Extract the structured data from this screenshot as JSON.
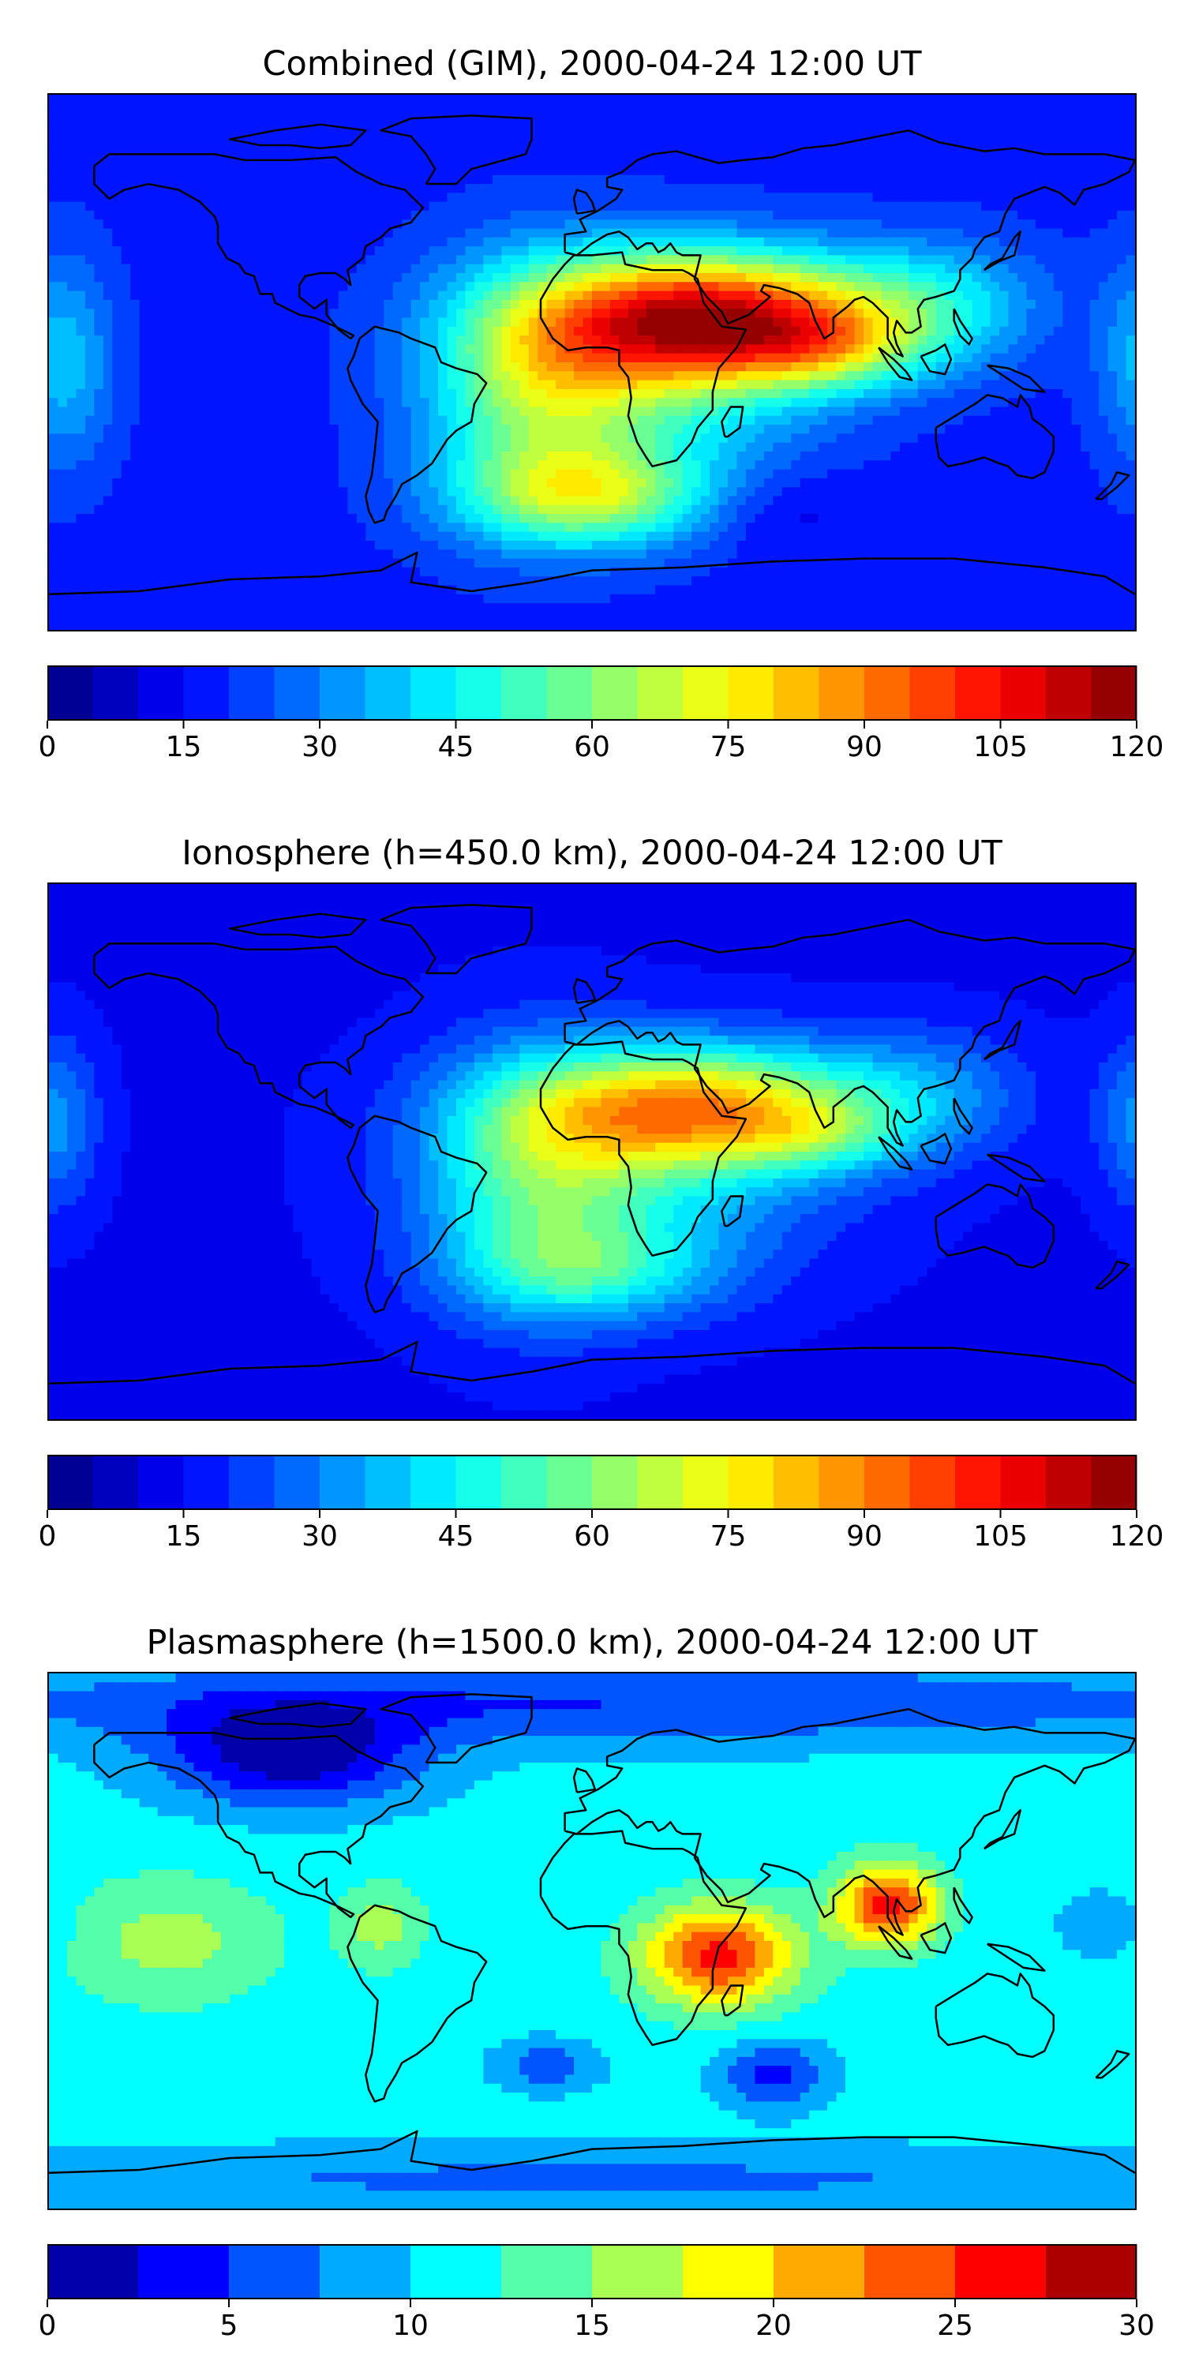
{
  "panels": [
    {
      "title": "Combined (GIM), 2000-04-24 12:00 UT",
      "colorbar": {
        "vmin": 0,
        "vmax": 120,
        "levels": 24,
        "ticks": [
          "0",
          "15",
          "30",
          "45",
          "60",
          "75",
          "90",
          "105",
          "120"
        ]
      },
      "field": {
        "base": 18,
        "blobs": [
          {
            "lon": 40,
            "lat": 15,
            "sx": 40,
            "sy": 15,
            "amp": 80
          },
          {
            "lon": 78,
            "lat": 5,
            "sx": 22,
            "sy": 10,
            "amp": 25
          },
          {
            "lon": 15,
            "lat": -3,
            "sx": 40,
            "sy": 25,
            "amp": 30
          },
          {
            "lon": -20,
            "lat": -10,
            "sx": 25,
            "sy": 30,
            "amp": 28
          },
          {
            "lon": 0,
            "lat": -45,
            "sx": 30,
            "sy": 12,
            "amp": 40
          },
          {
            "lon": 115,
            "lat": 20,
            "sx": 25,
            "sy": 15,
            "amp": 20
          },
          {
            "lon": -175,
            "lat": 0,
            "sx": 12,
            "sy": 25,
            "amp": 20
          },
          {
            "lon": 60,
            "lat": -50,
            "sx": 20,
            "sy": 10,
            "amp": -8
          }
        ]
      }
    },
    {
      "title": "Ionosphere  (h=450.0 km), 2000-04-24 12:00 UT",
      "colorbar": {
        "vmin": 0,
        "vmax": 120,
        "levels": 24,
        "ticks": [
          "0",
          "15",
          "30",
          "45",
          "60",
          "75",
          "90",
          "105",
          "120"
        ]
      },
      "field": {
        "base": 14,
        "blobs": [
          {
            "lon": 35,
            "lat": 15,
            "sx": 40,
            "sy": 14,
            "amp": 60
          },
          {
            "lon": 75,
            "lat": 5,
            "sx": 20,
            "sy": 8,
            "amp": 15
          },
          {
            "lon": 15,
            "lat": -5,
            "sx": 45,
            "sy": 25,
            "amp": 25
          },
          {
            "lon": -20,
            "lat": -10,
            "sx": 25,
            "sy": 30,
            "amp": 25
          },
          {
            "lon": 0,
            "lat": -40,
            "sx": 30,
            "sy": 12,
            "amp": 25
          },
          {
            "lon": 110,
            "lat": 20,
            "sx": 25,
            "sy": 15,
            "amp": 15
          },
          {
            "lon": -178,
            "lat": 10,
            "sx": 10,
            "sy": 20,
            "amp": 18
          }
        ]
      }
    },
    {
      "title": "Plasmasphere (h=1500.0 km), 2000-04-24 12:00 UT",
      "colorbar": {
        "vmin": 0,
        "vmax": 30,
        "levels": 12,
        "ticks": [
          "0",
          "5",
          "10",
          "15",
          "20",
          "25",
          "30"
        ]
      },
      "field": {
        "base": 11,
        "blobs": [
          {
            "lon": 42,
            "lat": -5,
            "sx": 18,
            "sy": 12,
            "amp": 15
          },
          {
            "lon": 98,
            "lat": 12,
            "sx": 12,
            "sy": 10,
            "amp": 15
          },
          {
            "lon": -100,
            "lat": 62,
            "sx": 30,
            "sy": 12,
            "amp": -10
          },
          {
            "lon": 60,
            "lat": -45,
            "sx": 12,
            "sy": 8,
            "amp": -7
          },
          {
            "lon": -15,
            "lat": -42,
            "sx": 12,
            "sy": 6,
            "amp": -5
          },
          {
            "lon": 170,
            "lat": 5,
            "sx": 10,
            "sy": 8,
            "amp": -4
          },
          {
            "lon": -140,
            "lat": 0,
            "sx": 25,
            "sy": 15,
            "amp": 5
          },
          {
            "lon": -70,
            "lat": 5,
            "sx": 10,
            "sy": 10,
            "amp": 5
          },
          {
            "lon": 0,
            "lat": 80,
            "sx": 180,
            "sy": 10,
            "amp": -6
          },
          {
            "lon": 0,
            "lat": -80,
            "sx": 180,
            "sy": 8,
            "amp": -4
          }
        ]
      }
    }
  ]
}
